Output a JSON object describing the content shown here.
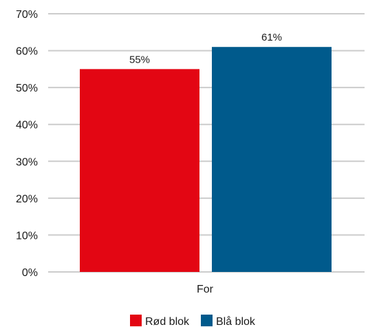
{
  "chart_data": {
    "type": "bar",
    "categories": [
      "For"
    ],
    "series": [
      {
        "name": "Rød blok",
        "values": [
          55
        ],
        "labels": [
          "55%"
        ],
        "color": "#e30613"
      },
      {
        "name": "Blå blok",
        "values": [
          61
        ],
        "labels": [
          "61%"
        ],
        "color": "#005a8c"
      }
    ],
    "ylim": [
      0,
      70
    ],
    "yticks": [
      0,
      10,
      20,
      30,
      40,
      50,
      60,
      70
    ],
    "ytick_labels": [
      "0%",
      "10%",
      "20%",
      "30%",
      "40%",
      "50%",
      "60%",
      "70%"
    ],
    "grid": true,
    "legend_position": "bottom-center",
    "title": "",
    "xlabel": "",
    "ylabel": ""
  }
}
